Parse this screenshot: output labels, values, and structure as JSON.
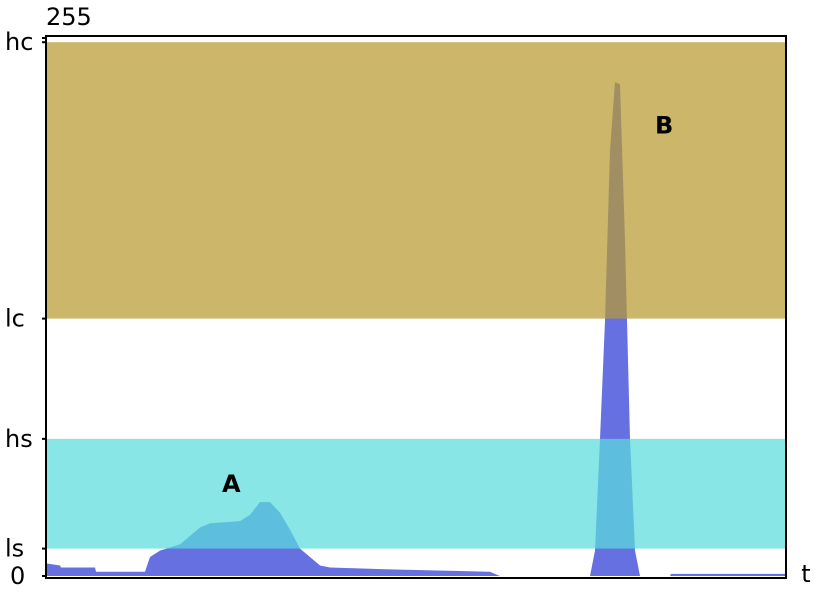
{
  "chart_data": {
    "type": "area",
    "x": [
      0,
      14,
      15,
      49,
      50,
      99,
      104,
      114,
      134,
      144,
      154,
      164,
      194,
      204,
      214,
      224,
      234,
      244,
      254,
      264,
      274,
      284,
      354,
      444,
      454,
      544,
      549,
      554,
      559,
      564,
      569,
      574,
      579,
      584,
      589,
      594,
      624,
      625,
      740
    ],
    "values": [
      6,
      5,
      4,
      4,
      2,
      2,
      9,
      12,
      15,
      19,
      23,
      25,
      26,
      29,
      35,
      35,
      30,
      22,
      13,
      9,
      5,
      4,
      3,
      2,
      0,
      0,
      12,
      65,
      121,
      202,
      234,
      233,
      159,
      65,
      12,
      0,
      0,
      1,
      1
    ],
    "color": "#6670e0",
    "xlim": [
      0,
      740
    ],
    "ylim": [
      0,
      255
    ],
    "yticks": [
      0,
      {
        "value": 13,
        "label": "ls"
      },
      {
        "value": 65,
        "label": "hs"
      },
      {
        "value": 122,
        "label": "lc"
      },
      {
        "value": 253,
        "label": "hc"
      },
      255
    ],
    "x_label": "t",
    "bands": [
      {
        "from": 122,
        "to": 253,
        "color": "#b89a30"
      },
      {
        "from": 13,
        "to": 65,
        "color": "#5adcdc"
      }
    ],
    "annotations": [
      {
        "text": "A",
        "x": 176,
        "y": 44
      },
      {
        "text": "B",
        "x": 609,
        "y": 214
      }
    ]
  }
}
